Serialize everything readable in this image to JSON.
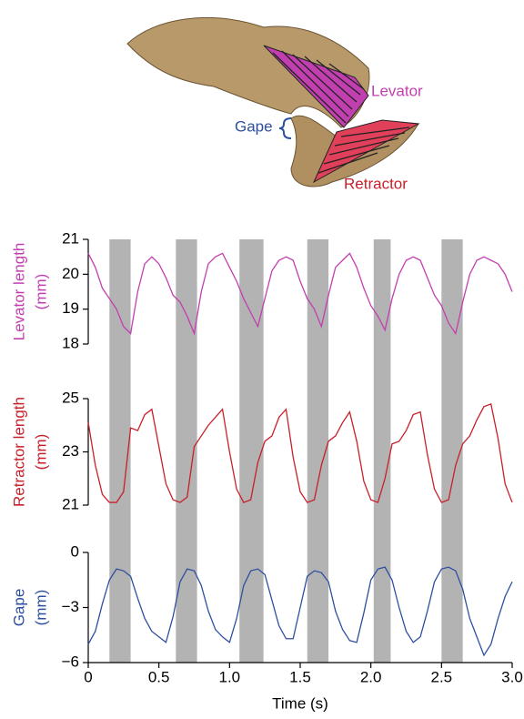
{
  "illustration": {
    "levator": "Levator",
    "gape": "Gape",
    "retractor": "Retractor"
  },
  "chart_data": [
    {
      "type": "line",
      "color": "#c23fb0",
      "y_label": [
        "Levator length",
        "(mm)"
      ],
      "xlim": [
        0,
        3
      ],
      "ylim": [
        18,
        21
      ],
      "yticks": [
        18,
        19,
        20,
        21
      ],
      "shaded_spans": [
        [
          0.15,
          0.3
        ],
        [
          0.62,
          0.77
        ],
        [
          1.07,
          1.24
        ],
        [
          1.55,
          1.7
        ],
        [
          2.02,
          2.14
        ],
        [
          2.5,
          2.65
        ]
      ],
      "x": [
        0,
        0.05,
        0.1,
        0.15,
        0.2,
        0.25,
        0.3,
        0.35,
        0.4,
        0.45,
        0.5,
        0.55,
        0.6,
        0.65,
        0.7,
        0.75,
        0.8,
        0.85,
        0.9,
        0.95,
        1,
        1.05,
        1.1,
        1.15,
        1.2,
        1.25,
        1.3,
        1.35,
        1.4,
        1.45,
        1.5,
        1.55,
        1.6,
        1.65,
        1.7,
        1.75,
        1.8,
        1.85,
        1.9,
        1.95,
        2,
        2.05,
        2.1,
        2.15,
        2.2,
        2.25,
        2.3,
        2.35,
        2.4,
        2.45,
        2.5,
        2.55,
        2.6,
        2.65,
        2.7,
        2.75,
        2.8,
        2.85,
        2.9,
        2.95,
        3
      ],
      "values": [
        20.6,
        20.2,
        19.6,
        19.3,
        19.0,
        18.5,
        18.3,
        19.5,
        20.3,
        20.5,
        20.3,
        19.9,
        19.4,
        19.2,
        18.8,
        18.3,
        19.5,
        20.3,
        20.5,
        20.6,
        20.2,
        19.8,
        19.3,
        18.9,
        18.5,
        19.3,
        20.1,
        20.4,
        20.5,
        20.4,
        19.8,
        19.3,
        19.0,
        18.5,
        19.4,
        20.2,
        20.4,
        20.6,
        20.2,
        19.6,
        19.1,
        18.8,
        18.4,
        19.3,
        20.0,
        20.4,
        20.5,
        20.4,
        19.9,
        19.4,
        19.1,
        18.6,
        18.3,
        19.2,
        20.0,
        20.4,
        20.5,
        20.4,
        20.3,
        20.0,
        19.5
      ]
    },
    {
      "type": "line",
      "color": "#c8202a",
      "y_label": [
        "Retractor length",
        "(mm)"
      ],
      "xlim": [
        0,
        3
      ],
      "ylim": [
        21,
        25
      ],
      "yticks": [
        21,
        23,
        25
      ],
      "x": [
        0,
        0.05,
        0.1,
        0.15,
        0.2,
        0.25,
        0.3,
        0.35,
        0.4,
        0.45,
        0.5,
        0.55,
        0.6,
        0.65,
        0.7,
        0.75,
        0.8,
        0.85,
        0.9,
        0.95,
        1,
        1.05,
        1.1,
        1.15,
        1.2,
        1.25,
        1.3,
        1.35,
        1.4,
        1.45,
        1.5,
        1.55,
        1.6,
        1.65,
        1.7,
        1.75,
        1.8,
        1.85,
        1.9,
        1.95,
        2,
        2.05,
        2.1,
        2.15,
        2.2,
        2.25,
        2.3,
        2.35,
        2.4,
        2.45,
        2.5,
        2.55,
        2.6,
        2.65,
        2.7,
        2.75,
        2.8,
        2.85,
        2.9,
        2.95,
        3
      ],
      "values": [
        24.1,
        22.5,
        21.4,
        21.1,
        21.1,
        21.5,
        23.9,
        23.8,
        24.4,
        24.6,
        23.2,
        21.8,
        21.2,
        21.1,
        21.3,
        23.2,
        23.6,
        24.0,
        24.3,
        24.6,
        23.0,
        21.6,
        21.1,
        21.2,
        22.6,
        23.4,
        23.6,
        24.3,
        24.6,
        22.8,
        21.5,
        21.1,
        21.2,
        22.5,
        23.4,
        23.6,
        24.1,
        24.5,
        23.4,
        21.9,
        21.2,
        21.1,
        22.0,
        23.3,
        23.4,
        23.8,
        24.4,
        24.5,
        22.9,
        21.6,
        21.1,
        21.2,
        22.5,
        23.3,
        23.6,
        24.2,
        24.7,
        24.8,
        23.5,
        21.8,
        21.1
      ]
    },
    {
      "type": "line",
      "color": "#2e4fa0",
      "y_label": [
        "Gape",
        "(mm)"
      ],
      "x_label": "Time (s)",
      "xlim": [
        0,
        3
      ],
      "ylim": [
        -6,
        0
      ],
      "yticks": [
        {
          "value": -6,
          "label": "−6"
        },
        {
          "value": -3,
          "label": "−3"
        },
        0
      ],
      "xticks": [
        0,
        0.5,
        {
          "value": 1,
          "label": "1.0"
        },
        1.5,
        {
          "value": 2,
          "label": "2.0"
        },
        2.5,
        {
          "value": 3,
          "label": "3.0"
        }
      ],
      "x": [
        0,
        0.05,
        0.1,
        0.15,
        0.2,
        0.25,
        0.3,
        0.35,
        0.4,
        0.45,
        0.5,
        0.55,
        0.6,
        0.65,
        0.7,
        0.75,
        0.8,
        0.85,
        0.9,
        0.95,
        1,
        1.05,
        1.1,
        1.15,
        1.2,
        1.25,
        1.3,
        1.35,
        1.4,
        1.45,
        1.5,
        1.55,
        1.6,
        1.65,
        1.7,
        1.75,
        1.8,
        1.85,
        1.9,
        1.95,
        2,
        2.05,
        2.1,
        2.15,
        2.2,
        2.25,
        2.3,
        2.35,
        2.4,
        2.45,
        2.5,
        2.55,
        2.6,
        2.65,
        2.7,
        2.75,
        2.8,
        2.85,
        2.9,
        2.95,
        3
      ],
      "values": [
        -5.0,
        -4.3,
        -2.8,
        -1.5,
        -0.9,
        -1.0,
        -1.3,
        -2.5,
        -3.6,
        -4.3,
        -4.6,
        -4.9,
        -3.5,
        -1.6,
        -0.9,
        -1.0,
        -1.8,
        -3.2,
        -4.2,
        -4.6,
        -4.9,
        -3.6,
        -1.8,
        -1.0,
        -0.9,
        -1.2,
        -2.6,
        -4.0,
        -4.7,
        -4.7,
        -3.0,
        -1.3,
        -1.0,
        -1.1,
        -1.6,
        -3.2,
        -4.2,
        -4.8,
        -4.9,
        -3.3,
        -1.5,
        -0.9,
        -0.8,
        -1.5,
        -3.0,
        -4.3,
        -4.9,
        -4.6,
        -3.2,
        -1.6,
        -0.9,
        -0.8,
        -1.0,
        -2.0,
        -3.6,
        -4.6,
        -5.6,
        -5.0,
        -3.6,
        -2.4,
        -1.6
      ]
    }
  ]
}
